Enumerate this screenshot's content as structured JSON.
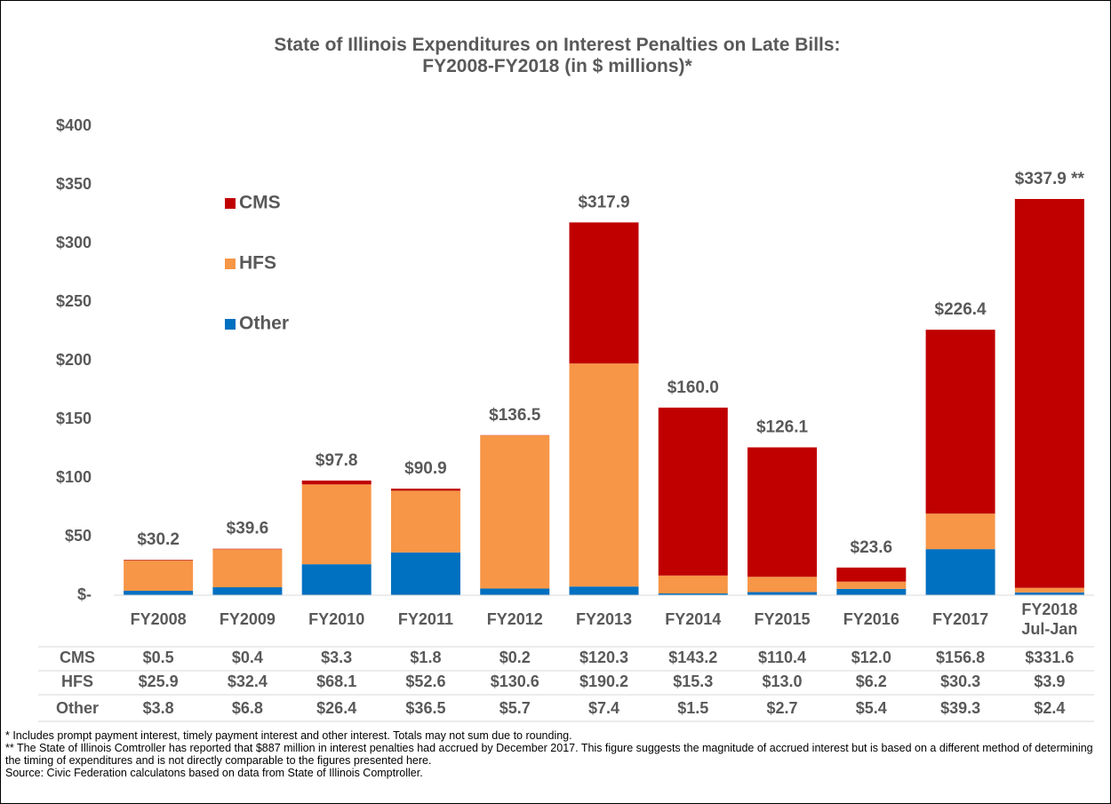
{
  "chart_data": {
    "type": "stacked_bar",
    "title": "State of Illinois Expenditures on Interest Penalties on Late Bills:\nFY2008-FY2018 (in $ millions)*",
    "categories": [
      "FY2008",
      "FY2009",
      "FY2010",
      "FY2011",
      "FY2012",
      "FY2013",
      "FY2014",
      "FY2015",
      "FY2016",
      "FY2017",
      "FY2018\nJul-Jan"
    ],
    "series": [
      {
        "name": "CMS",
        "color": "#c00000",
        "values": [
          0.5,
          0.4,
          3.3,
          1.8,
          0.2,
          120.3,
          143.2,
          110.4,
          12.0,
          156.8,
          331.6
        ],
        "value_labels": [
          "$0.5",
          "$0.4",
          "$3.3",
          "$1.8",
          "$0.2",
          "$120.3",
          "$143.2",
          "$110.4",
          "$12.0",
          "$156.8",
          "$331.6"
        ]
      },
      {
        "name": "HFS",
        "color": "#f79646",
        "values": [
          25.9,
          32.4,
          68.1,
          52.6,
          130.6,
          190.2,
          15.3,
          13.0,
          6.2,
          30.3,
          3.9
        ],
        "value_labels": [
          "$25.9",
          "$32.4",
          "$68.1",
          "$52.6",
          "$130.6",
          "$190.2",
          "$15.3",
          "$13.0",
          "$6.2",
          "$30.3",
          "$3.9"
        ]
      },
      {
        "name": "Other",
        "color": "#0070c0",
        "values": [
          3.8,
          6.8,
          26.4,
          36.5,
          5.7,
          7.4,
          1.5,
          2.7,
          5.4,
          39.3,
          2.4
        ],
        "value_labels": [
          "$3.8",
          "$6.8",
          "$26.4",
          "$36.5",
          "$5.7",
          "$7.4",
          "$1.5",
          "$2.7",
          "$5.4",
          "$39.3",
          "$2.4"
        ]
      }
    ],
    "totals": [
      30.2,
      39.6,
      97.8,
      90.9,
      136.5,
      317.9,
      160.0,
      126.1,
      23.6,
      226.4,
      337.9
    ],
    "total_labels": [
      "$30.2",
      "$39.6",
      "$97.8",
      "$90.9",
      "$136.5",
      "$317.9",
      "$160.0",
      "$126.1",
      "$23.6",
      "$226.4",
      "$337.9 **"
    ],
    "ylim": [
      0,
      400
    ],
    "yticks": [
      {
        "value": 0,
        "label": "$-"
      },
      {
        "value": 50,
        "label": "$50"
      },
      {
        "value": 100,
        "label": "$100"
      },
      {
        "value": 150,
        "label": "$150"
      },
      {
        "value": 200,
        "label": "$200"
      },
      {
        "value": 250,
        "label": "$250"
      },
      {
        "value": 300,
        "label": "$300"
      },
      {
        "value": 350,
        "label": "$350"
      },
      {
        "value": 400,
        "label": "$400"
      }
    ],
    "grid": false,
    "legend": "upper-left",
    "notes": [
      "* Includes prompt payment interest, timely payment interest and other interest. Totals may not sum due to rounding.",
      "** The State of Illinois Comtroller has reported that $887 million in interest penalties had accrued by December 2017. This figure suggests the magnitude of accrued interest but is based on a different method of determining the timing of expenditures and is not directly comparable to the figures presented here.",
      "Source: Civic Federation calculatons based on data from State of Illinois Comptroller."
    ]
  }
}
